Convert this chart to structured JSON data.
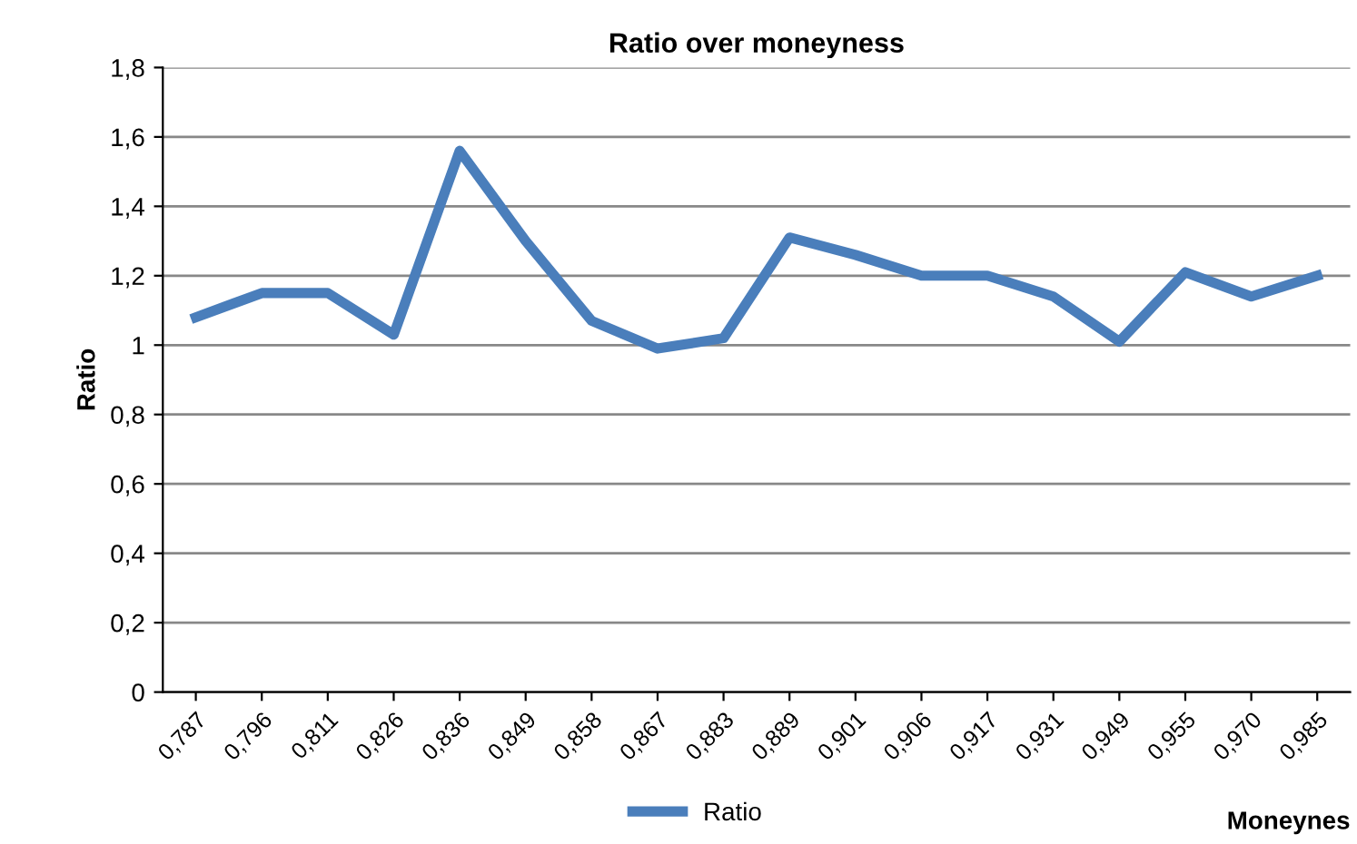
{
  "chart_data": {
    "type": "line",
    "title": "Ratio over moneyness",
    "xlabel": "Moneynes",
    "ylabel": "Ratio",
    "categories": [
      "0,787",
      "0,796",
      "0,811",
      "0,826",
      "0,836",
      "0,849",
      "0,858",
      "0,867",
      "0,883",
      "0,889",
      "0,901",
      "0,906",
      "0,917",
      "0,931",
      "0,949",
      "0,955",
      "0,970",
      "0,985"
    ],
    "series": [
      {
        "name": "Ratio",
        "color": "#4a7ebb",
        "values": [
          1.08,
          1.15,
          1.15,
          1.03,
          1.56,
          1.3,
          1.07,
          0.99,
          1.02,
          1.31,
          1.26,
          1.2,
          1.2,
          1.14,
          1.01,
          1.21,
          1.14,
          1.2
        ]
      }
    ],
    "ylim": [
      0,
      1.8
    ],
    "yticks": [
      {
        "value": 0,
        "label": "0"
      },
      {
        "value": 0.2,
        "label": "0,2"
      },
      {
        "value": 0.4,
        "label": "0,4"
      },
      {
        "value": 0.6,
        "label": "0,6"
      },
      {
        "value": 0.8,
        "label": "0,8"
      },
      {
        "value": 1,
        "label": "1"
      },
      {
        "value": 1.2,
        "label": "1,2"
      },
      {
        "value": 1.4,
        "label": "1,4"
      },
      {
        "value": 1.6,
        "label": "1,6"
      },
      {
        "value": 1.8,
        "label": "1,8"
      }
    ],
    "grid": "y",
    "legend": "bottom",
    "marker": "none",
    "line_style": "solid"
  }
}
